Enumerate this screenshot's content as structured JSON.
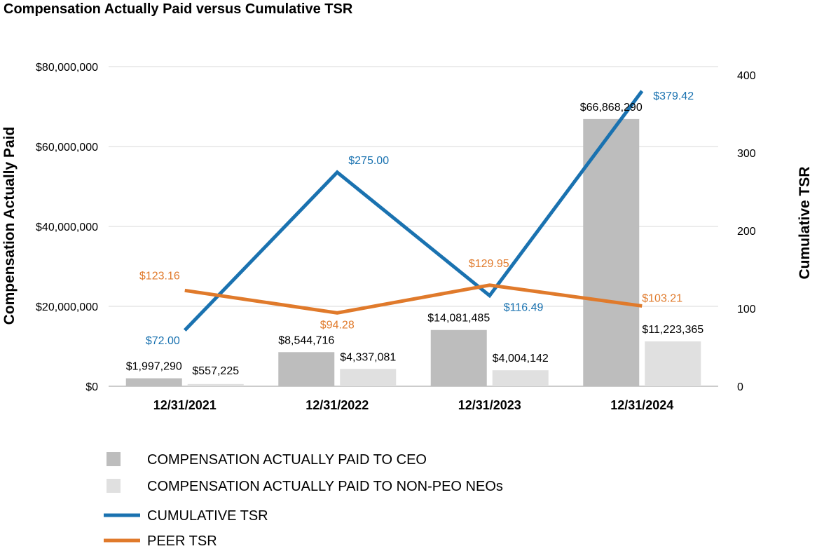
{
  "chart_data": {
    "type": "bar",
    "title": "Compensation Actually Paid versus Cumulative TSR",
    "categories": [
      "12/31/2021",
      "12/31/2022",
      "12/31/2023",
      "12/31/2024"
    ],
    "ylabel": "Compensation Actually Paid",
    "y2label": "Cumulative TSR",
    "ylim": [
      0,
      80000000
    ],
    "y2lim": [
      0,
      400
    ],
    "y_ticks": [
      0,
      20000000,
      40000000,
      60000000,
      80000000
    ],
    "y_tick_labels": [
      "$0",
      "$20,000,000",
      "$40,000,000",
      "$60,000,000",
      "$80,000,000"
    ],
    "y2_ticks": [
      0,
      100,
      200,
      300,
      400
    ],
    "y2_tick_labels": [
      "0",
      "100",
      "200",
      "300",
      "400"
    ],
    "grid": true,
    "legend_position": "bottom",
    "series": [
      {
        "name": "COMPENSATION ACTUALLY PAID TO CEO",
        "kind": "bar",
        "axis": "left",
        "color": "#bdbdbd",
        "values": [
          1997290,
          8544716,
          14081485,
          66868290
        ],
        "labels": [
          "$1,997,290",
          "$8,544,716",
          "$14,081,485",
          "$66,868,290"
        ]
      },
      {
        "name": "COMPENSATION ACTUALLY PAID TO NON-PEO NEOs",
        "kind": "bar",
        "axis": "left",
        "color": "#e0e0e0",
        "values": [
          557225,
          4337081,
          4004142,
          11223365
        ],
        "labels": [
          "$557,225",
          "$4,337,081",
          "$4,004,142",
          "$11,223,365"
        ]
      },
      {
        "name": "CUMULATIVE TSR",
        "kind": "line",
        "axis": "right",
        "color": "#1a72b0",
        "values": [
          72.0,
          275.0,
          116.49,
          379.42
        ],
        "labels": [
          "$72.00",
          "$275.00",
          "$116.49",
          "$379.42"
        ]
      },
      {
        "name": "PEER TSR",
        "kind": "line",
        "axis": "right",
        "color": "#e07a2b",
        "values": [
          123.16,
          94.28,
          129.95,
          103.21
        ],
        "labels": [
          "$123.16",
          "$94.28",
          "$129.95",
          "$103.21"
        ]
      }
    ]
  }
}
